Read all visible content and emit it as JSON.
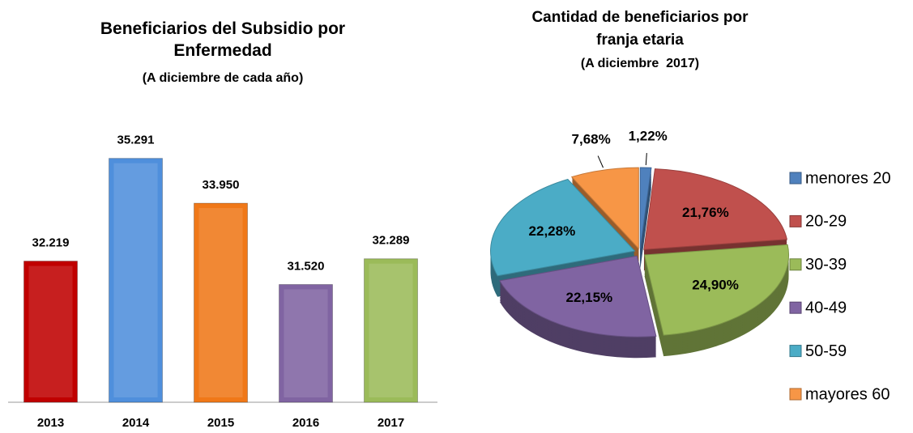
{
  "chart_data": [
    {
      "type": "bar",
      "title": "Beneficiarios del Subsidio por Enfermedad",
      "subtitle": "(A diciembre de cada año)",
      "categories": [
        "2013",
        "2014",
        "2015",
        "2016",
        "2017"
      ],
      "values": [
        32219,
        35291,
        33950,
        31520,
        32289
      ],
      "value_labels": [
        "32.219",
        "35.291",
        "33.950",
        "31.520",
        "32.289"
      ],
      "colors": [
        "#c00000",
        "#4f8fdc",
        "#f07818",
        "#8064a2",
        "#9bbb59"
      ],
      "ylim": [
        28000,
        35500
      ]
    },
    {
      "type": "pie",
      "title": "Cantidad de beneficiarios por franja etaria",
      "subtitle": "(A diciembre  2017)",
      "categories": [
        "menores 20",
        "20-29",
        "30-39",
        "40-49",
        "50-59",
        "mayores 60"
      ],
      "values": [
        1.22,
        21.76,
        24.9,
        22.15,
        22.28,
        7.68
      ],
      "value_labels": [
        "1,22%",
        "21,76%",
        "24,90%",
        "22,15%",
        "22,28%",
        "7,68%"
      ],
      "colors": [
        "#4f81bd",
        "#c0504d",
        "#9bbb59",
        "#8064a2",
        "#4bacc6",
        "#f79646"
      ],
      "legend": "right"
    }
  ]
}
